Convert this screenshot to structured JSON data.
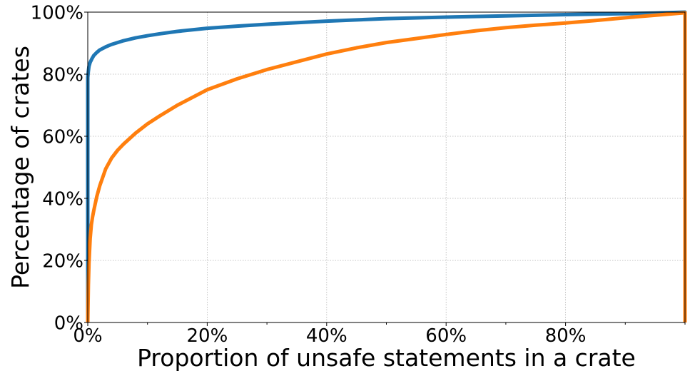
{
  "chart_data": {
    "type": "line",
    "xlabel": "Proportion of unsafe statements in a crate",
    "ylabel": "Percentage of crates",
    "xlim": [
      0,
      1
    ],
    "ylim": [
      0,
      100
    ],
    "grid": true,
    "x_ticks": [
      {
        "value": 0,
        "label": "0%"
      },
      {
        "value": 0.2,
        "label": "20%"
      },
      {
        "value": 0.4,
        "label": "40%"
      },
      {
        "value": 0.6,
        "label": "60%"
      },
      {
        "value": 0.8,
        "label": "80%"
      }
    ],
    "x_minor_ticks": [
      0.1,
      0.3,
      0.5,
      0.7,
      0.9,
      1.0
    ],
    "y_ticks": [
      {
        "value": 0,
        "label": "0%"
      },
      {
        "value": 20,
        "label": "20%"
      },
      {
        "value": 40,
        "label": "40%"
      },
      {
        "value": 60,
        "label": "60%"
      },
      {
        "value": 80,
        "label": "80%"
      },
      {
        "value": 100,
        "label": "100%"
      }
    ],
    "series": [
      {
        "color": "#1f77b4",
        "x": [
          0,
          0,
          0.001,
          0.002,
          0.004,
          0.007,
          0.01,
          0.015,
          0.02,
          0.03,
          0.04,
          0.05,
          0.06,
          0.08,
          0.1,
          0.12,
          0.15,
          0.2,
          0.25,
          0.3,
          0.4,
          0.5,
          0.6,
          0.7,
          0.8,
          0.9,
          0.95,
          1.0,
          1.0
        ],
        "y": [
          0,
          79,
          81,
          82.5,
          83.8,
          85,
          86,
          87,
          87.8,
          88.8,
          89.6,
          90.2,
          90.8,
          91.7,
          92.4,
          93,
          93.8,
          94.8,
          95.5,
          96.1,
          97.1,
          97.9,
          98.4,
          98.8,
          99.2,
          99.5,
          99.7,
          100,
          0
        ]
      },
      {
        "color": "#ff7f0e",
        "x": [
          0,
          0.001,
          0.002,
          0.004,
          0.006,
          0.008,
          0.01,
          0.015,
          0.02,
          0.03,
          0.04,
          0.05,
          0.06,
          0.08,
          0.1,
          0.12,
          0.15,
          0.2,
          0.25,
          0.3,
          0.35,
          0.4,
          0.45,
          0.5,
          0.55,
          0.6,
          0.65,
          0.7,
          0.75,
          0.8,
          0.85,
          0.9,
          0.95,
          1.0,
          1.0
        ],
        "y": [
          0,
          12,
          19,
          27,
          31.5,
          34,
          36,
          40.5,
          44,
          49.5,
          53,
          55.5,
          57.5,
          61,
          64,
          66.5,
          70,
          75,
          78.5,
          81.5,
          84,
          86.5,
          88.5,
          90.2,
          91.5,
          92.8,
          94,
          95,
          95.8,
          96.5,
          97.3,
          98.2,
          99,
          99.8,
          0
        ]
      }
    ]
  }
}
